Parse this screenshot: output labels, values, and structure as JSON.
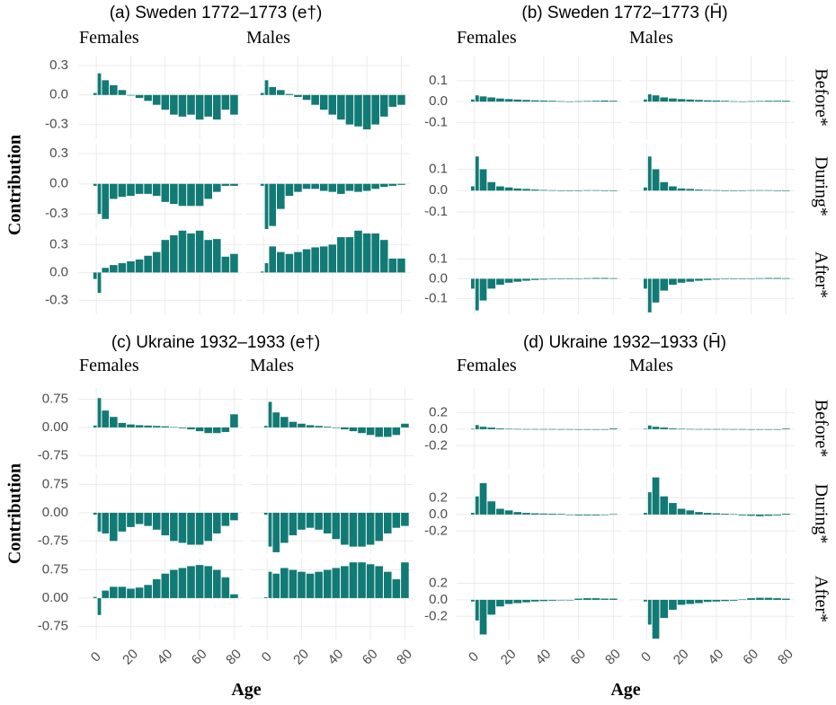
{
  "chart_data": [
    {
      "type": "bar",
      "title": "(a) Sweden 1772–1773 (e†)",
      "ylabel": "Contribution",
      "columns": [
        "Females",
        "Males"
      ],
      "x": [
        0,
        1,
        5,
        10,
        15,
        20,
        25,
        30,
        35,
        40,
        45,
        50,
        55,
        60,
        65,
        70,
        75,
        80
      ],
      "xlim": [
        -10,
        85
      ],
      "xticks": [
        0,
        20,
        40,
        60,
        80
      ],
      "ylim": [
        -0.45,
        0.4
      ],
      "yticks": [
        0.3,
        {
          "value": 0,
          "label": "0.0"
        },
        -0.3
      ],
      "grid": true,
      "color": "#127a75",
      "values": [
        [
          [
            0.02,
            0.22,
            0.15,
            0.1,
            0.05,
            0,
            -0.03,
            -0.06,
            -0.1,
            -0.15,
            -0.2,
            -0.22,
            -0.2,
            -0.25,
            -0.22,
            -0.25,
            -0.15,
            -0.2
          ],
          [
            0.02,
            0.15,
            0.08,
            0.05,
            0.01,
            -0.02,
            -0.05,
            -0.1,
            -0.15,
            -0.2,
            -0.25,
            -0.3,
            -0.32,
            -0.35,
            -0.3,
            -0.22,
            -0.12,
            -0.1
          ]
        ],
        [
          [
            -0.02,
            -0.3,
            -0.35,
            -0.15,
            -0.13,
            -0.12,
            -0.1,
            -0.1,
            -0.12,
            -0.18,
            -0.2,
            -0.22,
            -0.22,
            -0.22,
            -0.15,
            -0.08,
            -0.02,
            -0.02
          ],
          [
            -0.02,
            -0.45,
            -0.42,
            -0.25,
            -0.12,
            -0.08,
            -0.05,
            -0.05,
            -0.07,
            -0.08,
            -0.1,
            -0.07,
            -0.08,
            -0.07,
            -0.05,
            -0.03,
            -0.02,
            -0.01
          ]
        ],
        [
          [
            -0.07,
            -0.22,
            0.05,
            0.08,
            0.1,
            0.12,
            0.14,
            0.18,
            0.22,
            0.35,
            0.4,
            0.45,
            0.42,
            0.45,
            0.35,
            0.36,
            0.17,
            0.2
          ],
          [
            0.01,
            0.1,
            0.28,
            0.22,
            0.2,
            0.22,
            0.25,
            0.27,
            0.28,
            0.3,
            0.38,
            0.38,
            0.45,
            0.42,
            0.42,
            0.35,
            0.15,
            0.15
          ]
        ]
      ]
    },
    {
      "type": "bar",
      "title": "(b) Sweden 1772–1773 (H̄)",
      "columns": [
        "Females",
        "Males"
      ],
      "rows": [
        "Before*",
        "During*",
        "After*"
      ],
      "x": [
        0,
        1,
        5,
        10,
        15,
        20,
        25,
        30,
        35,
        40,
        45,
        50,
        55,
        60,
        65,
        70,
        75,
        80
      ],
      "xlim": [
        -10,
        85
      ],
      "xticks": [
        0,
        20,
        40,
        60,
        80
      ],
      "ylim": [
        -0.18,
        0.22
      ],
      "yticks": [
        0.1,
        {
          "value": 0,
          "label": "0.0"
        },
        -0.1
      ],
      "grid": true,
      "color": "#127a75",
      "values": [
        [
          [
            0.01,
            0.03,
            0.025,
            0.02,
            0.015,
            0.012,
            0.01,
            0.008,
            0.006,
            0.005,
            0.004,
            0.002,
            0.001,
            0.002,
            0.003,
            0.004,
            0.005,
            0.004
          ],
          [
            0.01,
            0.035,
            0.03,
            0.02,
            0.015,
            0.012,
            0.01,
            0.008,
            0.006,
            0.005,
            0.004,
            0.002,
            0.001,
            0.002,
            0.003,
            0.004,
            0.004,
            0.004
          ]
        ],
        [
          [
            0.02,
            0.16,
            0.1,
            0.04,
            0.02,
            0.015,
            0.01,
            0.008,
            0.005,
            0.003,
            0.002,
            0.001,
            0.001,
            0.001,
            0.002,
            0.002,
            0.001,
            0.001
          ],
          [
            0.015,
            0.16,
            0.1,
            0.04,
            0.02,
            0.01,
            0.008,
            0.005,
            0.003,
            0.002,
            0.001,
            0.001,
            0.001,
            0.002,
            0.002,
            0.002,
            0.001,
            0.001
          ]
        ],
        [
          [
            -0.05,
            -0.16,
            -0.11,
            -0.05,
            -0.03,
            -0.02,
            -0.015,
            -0.01,
            -0.006,
            -0.004,
            -0.002,
            -0.001,
            -0.001,
            0.002,
            0.003,
            0.004,
            0.004,
            0.003
          ],
          [
            -0.05,
            -0.17,
            -0.12,
            -0.06,
            -0.03,
            -0.02,
            -0.015,
            -0.01,
            -0.006,
            -0.004,
            -0.002,
            -0.001,
            -0.001,
            0.002,
            0.003,
            0.004,
            0.004,
            0.003
          ]
        ]
      ]
    },
    {
      "type": "bar",
      "title": "(c) Ukraine 1932–1933 (e†)",
      "ylabel": "Contribution",
      "xlabel": "Age",
      "columns": [
        "Females",
        "Males"
      ],
      "x": [
        0,
        1,
        5,
        10,
        15,
        20,
        25,
        30,
        35,
        40,
        45,
        50,
        55,
        60,
        65,
        70,
        75,
        80
      ],
      "xlim": [
        -10,
        85
      ],
      "xticks": [
        0,
        20,
        40,
        60,
        80
      ],
      "ylim": [
        -1.1,
        1.05
      ],
      "yticks": [
        0.75,
        {
          "value": 0,
          "label": "0.00"
        },
        -0.75
      ],
      "grid": true,
      "color": "#127a75",
      "values": [
        [
          [
            0.05,
            0.78,
            0.45,
            0.28,
            0.12,
            0.08,
            0.06,
            0.05,
            0.04,
            0.03,
            0.01,
            -0.02,
            -0.05,
            -0.1,
            -0.15,
            -0.15,
            -0.12,
            0.35
          ],
          [
            0.04,
            0.68,
            0.4,
            0.28,
            0.15,
            0.1,
            0.06,
            0.04,
            0.02,
            0,
            -0.05,
            -0.1,
            -0.15,
            -0.2,
            -0.25,
            -0.25,
            -0.2,
            0.1
          ]
        ],
        [
          [
            -0.05,
            -0.5,
            -0.55,
            -0.75,
            -0.5,
            -0.38,
            -0.3,
            -0.35,
            -0.45,
            -0.6,
            -0.75,
            -0.8,
            -0.85,
            -0.85,
            -0.75,
            -0.55,
            -0.35,
            -0.2
          ],
          [
            -0.05,
            -0.9,
            -1.05,
            -0.8,
            -0.6,
            -0.45,
            -0.4,
            -0.45,
            -0.55,
            -0.7,
            -0.85,
            -0.9,
            -0.9,
            -0.85,
            -0.75,
            -0.55,
            -0.4,
            -0.35
          ]
        ],
        [
          [
            0.03,
            -0.45,
            0.2,
            0.3,
            0.3,
            0.25,
            0.28,
            0.35,
            0.5,
            0.65,
            0.75,
            0.8,
            0.85,
            0.88,
            0.85,
            0.75,
            0.55,
            0.1
          ],
          [
            0.02,
            0.7,
            0.65,
            0.8,
            0.75,
            0.7,
            0.65,
            0.7,
            0.75,
            0.8,
            0.85,
            0.95,
            0.95,
            0.9,
            0.85,
            0.7,
            0.5,
            0.95
          ]
        ]
      ]
    },
    {
      "type": "bar",
      "title": "(d) Ukraine 1932–1933 (H̄)",
      "xlabel": "Age",
      "columns": [
        "Females",
        "Males"
      ],
      "rows": [
        "Before*",
        "During*",
        "After*"
      ],
      "x": [
        0,
        1,
        5,
        10,
        15,
        20,
        25,
        30,
        35,
        40,
        45,
        50,
        55,
        60,
        65,
        70,
        75,
        80
      ],
      "xlim": [
        -10,
        85
      ],
      "xticks": [
        0,
        20,
        40,
        60,
        80
      ],
      "ylim": [
        -0.48,
        0.5
      ],
      "yticks": [
        0.2,
        {
          "value": 0,
          "label": "0.0"
        },
        -0.2
      ],
      "grid": true,
      "color": "#127a75",
      "values": [
        [
          [
            0.005,
            0.05,
            0.03,
            0.02,
            0.01,
            0.005,
            0.003,
            0.002,
            0.002,
            0.002,
            0.002,
            0.001,
            0.001,
            0,
            -0.003,
            -0.005,
            -0.005,
            0.01
          ],
          [
            0.005,
            0.045,
            0.03,
            0.02,
            0.01,
            0.005,
            0.003,
            0.002,
            0.002,
            0.002,
            0.002,
            0.001,
            0.001,
            0,
            -0.003,
            -0.005,
            -0.005,
            0.008
          ]
        ],
        [
          [
            0.02,
            0.22,
            0.38,
            0.16,
            0.07,
            0.05,
            0.03,
            0.02,
            0.015,
            0.012,
            0.01,
            0.008,
            -0.005,
            -0.01,
            -0.01,
            -0.01,
            -0.005,
            0.005
          ],
          [
            0.02,
            0.27,
            0.45,
            0.22,
            0.14,
            0.07,
            0.05,
            0.03,
            0.02,
            0.015,
            0.01,
            0.005,
            -0.01,
            -0.015,
            -0.02,
            -0.015,
            -0.01,
            0.01
          ]
        ],
        [
          [
            -0.02,
            -0.25,
            -0.42,
            -0.18,
            -0.08,
            -0.05,
            -0.04,
            -0.03,
            -0.02,
            -0.015,
            -0.01,
            -0.005,
            0,
            0.015,
            0.02,
            0.02,
            0.015,
            0.015
          ],
          [
            -0.02,
            -0.3,
            -0.47,
            -0.22,
            -0.12,
            -0.06,
            -0.05,
            -0.04,
            -0.025,
            -0.02,
            -0.015,
            -0.01,
            0.005,
            0.02,
            0.025,
            0.025,
            0.02,
            0.015
          ]
        ]
      ]
    }
  ]
}
